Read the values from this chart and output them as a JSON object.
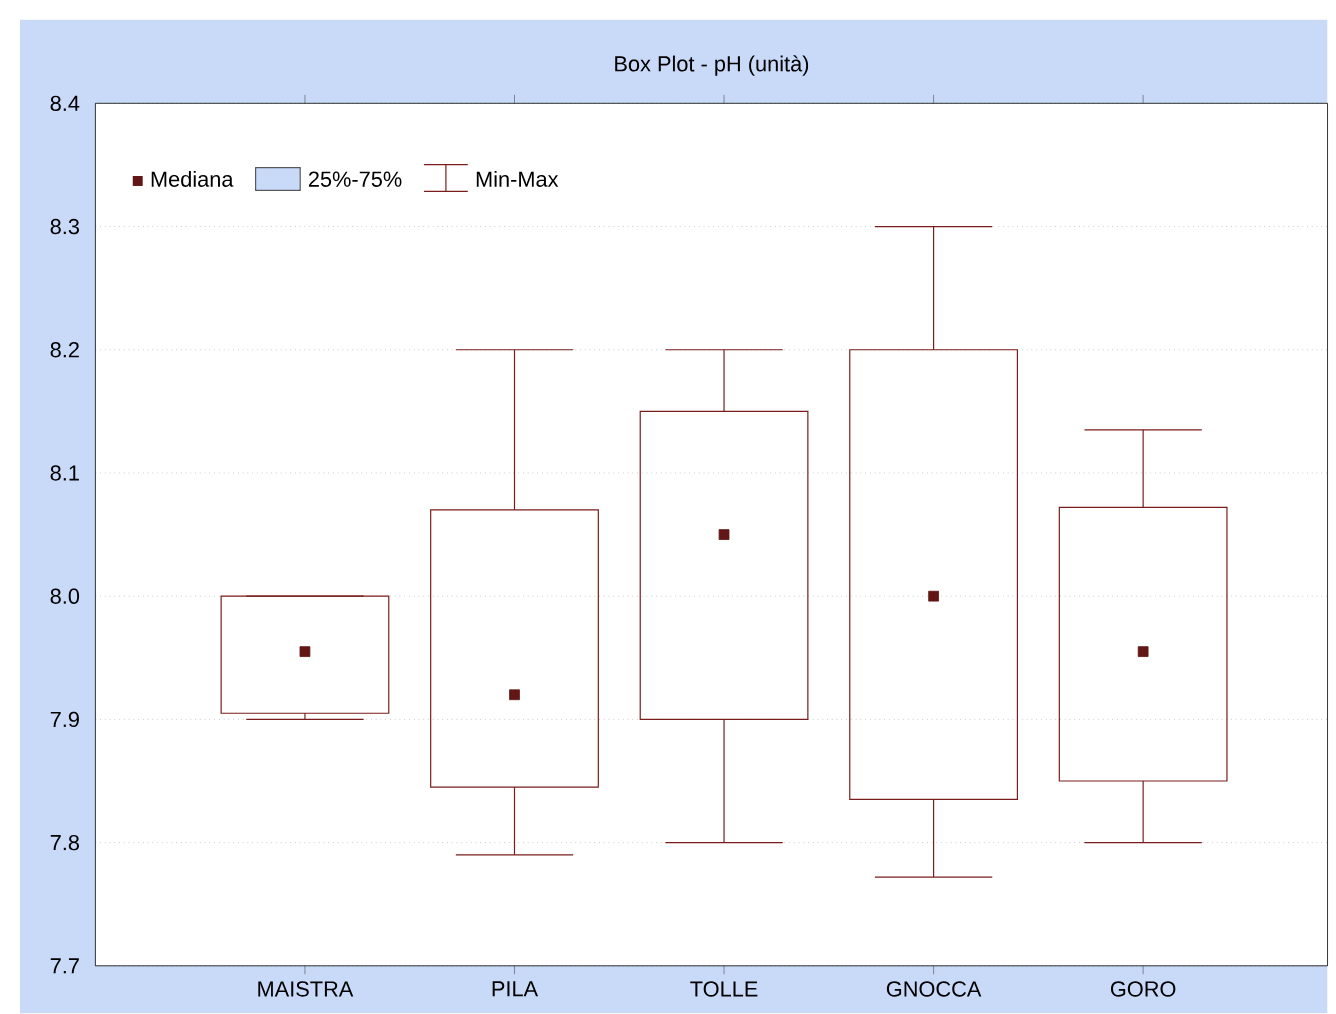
{
  "chart_data": {
    "type": "box",
    "title": "Box Plot - pH (unità)",
    "categories": [
      "MAISTRA",
      "PILA",
      "TOLLE",
      "GNOCCA",
      "GORO"
    ],
    "series": [
      {
        "color": "#7a1c1c",
        "boxes": [
          {
            "low": 7.9,
            "q1": 7.905,
            "median": 7.955,
            "q3": 8.0,
            "high": 8.0
          },
          {
            "low": 7.79,
            "q1": 7.845,
            "median": 7.92,
            "q3": 8.07,
            "high": 8.2
          },
          {
            "low": 7.8,
            "q1": 7.9,
            "median": 8.05,
            "q3": 8.15,
            "high": 8.2
          },
          {
            "low": 7.772,
            "q1": 7.835,
            "median": 8.0,
            "q3": 8.2,
            "high": 8.3
          },
          {
            "low": 7.8,
            "q1": 7.85,
            "median": 7.955,
            "q3": 8.072,
            "high": 8.135
          }
        ]
      }
    ],
    "ylim": [
      7.7,
      8.4
    ],
    "yticks": [
      7.7,
      7.8,
      7.9,
      {
        "value": 8.0,
        "label": "8.0"
      },
      8.1,
      8.2,
      8.3,
      8.4
    ],
    "grid": "y",
    "marker": "square",
    "annotations": [
      "Mediana",
      "25%-75%",
      "Min-Max"
    ]
  }
}
